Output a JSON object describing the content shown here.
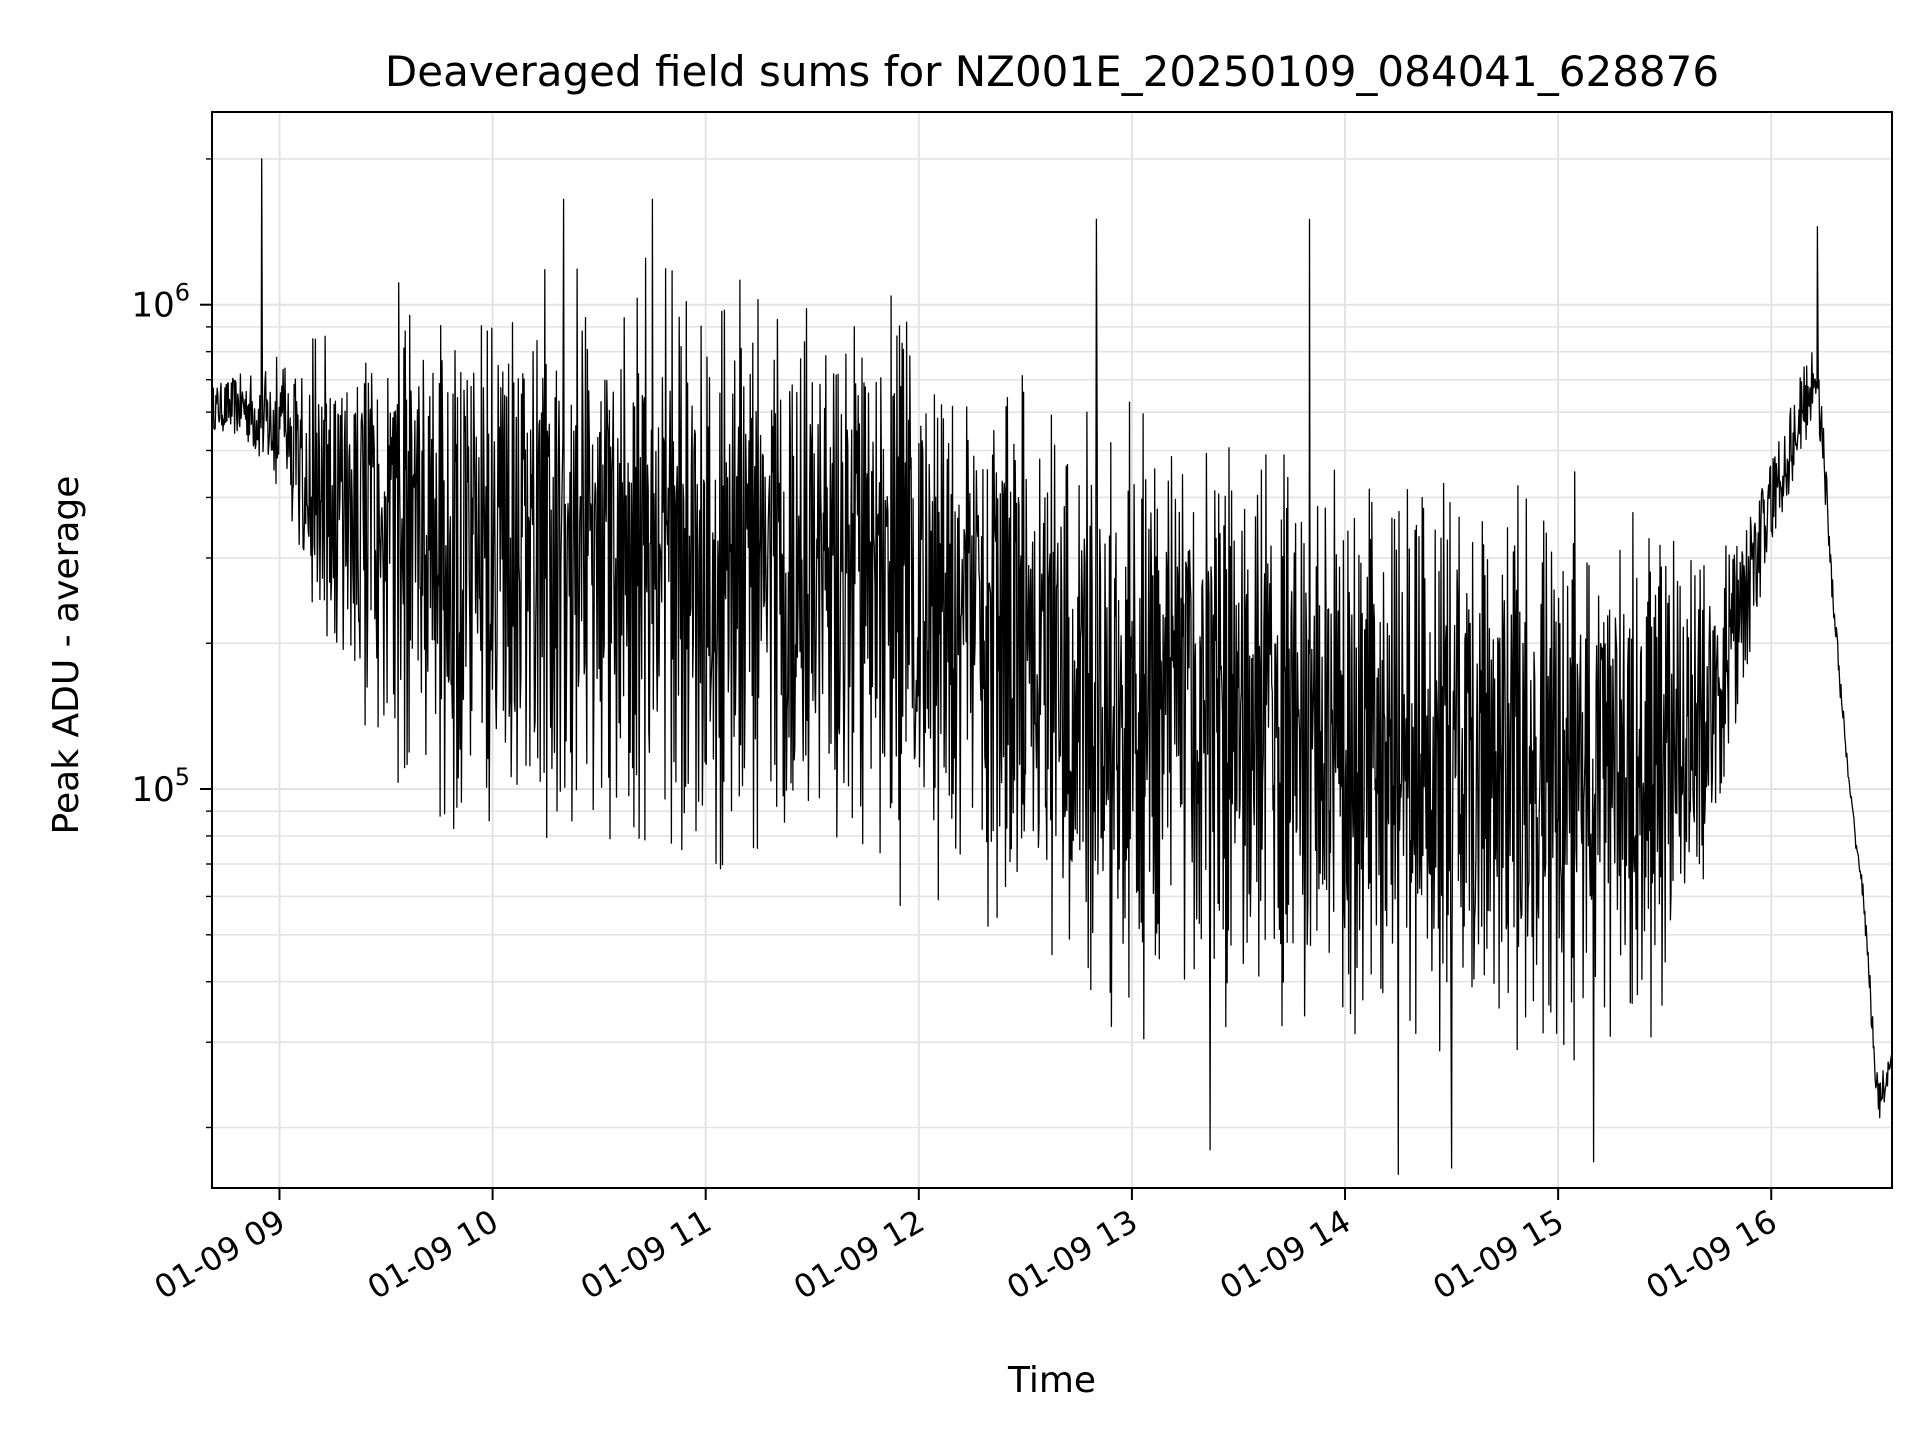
{
  "chart_data": {
    "type": "line",
    "title": "Deaveraged field sums for NZ001E_20250109_084041_628876",
    "xlabel": "Time",
    "ylabel": "Peak ADU - average",
    "yscale": "log",
    "x_start": "2025-01-09 08:41",
    "x_end": "2025-01-09 16:34",
    "xlim": [
      "2025-01-09 08:41",
      "2025-01-09 16:34"
    ],
    "ylim": [
      15000,
      2500000
    ],
    "x_ticks": [
      {
        "value": "2025-01-09 09:00",
        "label": "01-09 09"
      },
      {
        "value": "2025-01-09 10:00",
        "label": "01-09 10"
      },
      {
        "value": "2025-01-09 11:00",
        "label": "01-09 11"
      },
      {
        "value": "2025-01-09 12:00",
        "label": "01-09 12"
      },
      {
        "value": "2025-01-09 13:00",
        "label": "01-09 13"
      },
      {
        "value": "2025-01-09 14:00",
        "label": "01-09 14"
      },
      {
        "value": "2025-01-09 15:00",
        "label": "01-09 15"
      },
      {
        "value": "2025-01-09 16:00",
        "label": "01-09 16"
      }
    ],
    "y_major_ticks": [
      {
        "value": 100000,
        "base": "10",
        "exp": "5"
      },
      {
        "value": 1000000,
        "base": "10",
        "exp": "6"
      }
    ],
    "grid": true,
    "line_color": "#000000",
    "series": [
      {
        "envelope": [
          {
            "t": "08:41",
            "upper": 750000,
            "lower": 500000
          },
          {
            "t": "08:50",
            "upper": 850000,
            "lower": 450000
          },
          {
            "t": "09:00",
            "upper": 1000000,
            "lower": 300000
          },
          {
            "t": "09:10",
            "upper": 1100000,
            "lower": 150000
          },
          {
            "t": "09:30",
            "upper": 1250000,
            "lower": 80000
          },
          {
            "t": "09:45",
            "upper": 1300000,
            "lower": 60000
          },
          {
            "t": "10:00",
            "upper": 1500000,
            "lower": 60000
          },
          {
            "t": "10:30",
            "upper": 1550000,
            "lower": 55000
          },
          {
            "t": "11:00",
            "upper": 1500000,
            "lower": 45000
          },
          {
            "t": "11:30",
            "upper": 1450000,
            "lower": 50000
          },
          {
            "t": "12:00",
            "upper": 1300000,
            "lower": 45000
          },
          {
            "t": "12:15",
            "upper": 1100000,
            "lower": 40000
          },
          {
            "t": "12:30",
            "upper": 950000,
            "lower": 35000
          },
          {
            "t": "12:45",
            "upper": 800000,
            "lower": 28000
          },
          {
            "t": "13:00",
            "upper": 750000,
            "lower": 26000
          },
          {
            "t": "13:30",
            "upper": 700000,
            "lower": 24000
          },
          {
            "t": "14:00",
            "upper": 650000,
            "lower": 22000
          },
          {
            "t": "14:30",
            "upper": 600000,
            "lower": 21000
          },
          {
            "t": "15:00",
            "upper": 500000,
            "lower": 22000
          },
          {
            "t": "15:30",
            "upper": 450000,
            "lower": 25000
          },
          {
            "t": "15:45",
            "upper": 350000,
            "lower": 70000
          },
          {
            "t": "16:00",
            "upper": 600000,
            "lower": 250000
          },
          {
            "t": "16:13",
            "upper": 1100000,
            "lower": 500000
          },
          {
            "t": "16:18",
            "upper": 250000,
            "lower": 190000
          },
          {
            "t": "16:22",
            "upper": 110000,
            "lower": 90000
          },
          {
            "t": "16:26",
            "upper": 65000,
            "lower": 55000
          },
          {
            "t": "16:30",
            "upper": 28000,
            "lower": 18000
          },
          {
            "t": "16:34",
            "upper": 30000,
            "lower": 24000
          }
        ],
        "spikes": [
          {
            "t": "08:55",
            "value": 2000000
          },
          {
            "t": "10:20",
            "value": 1650000
          },
          {
            "t": "10:45",
            "value": 1650000
          },
          {
            "t": "12:50",
            "value": 1500000
          },
          {
            "t": "13:50",
            "value": 1500000
          },
          {
            "t": "16:13",
            "value": 1450000
          },
          {
            "t": "13:22",
            "value": 18000
          },
          {
            "t": "14:15",
            "value": 16000
          },
          {
            "t": "14:30",
            "value": 16500
          },
          {
            "t": "15:10",
            "value": 17000
          }
        ]
      }
    ]
  }
}
